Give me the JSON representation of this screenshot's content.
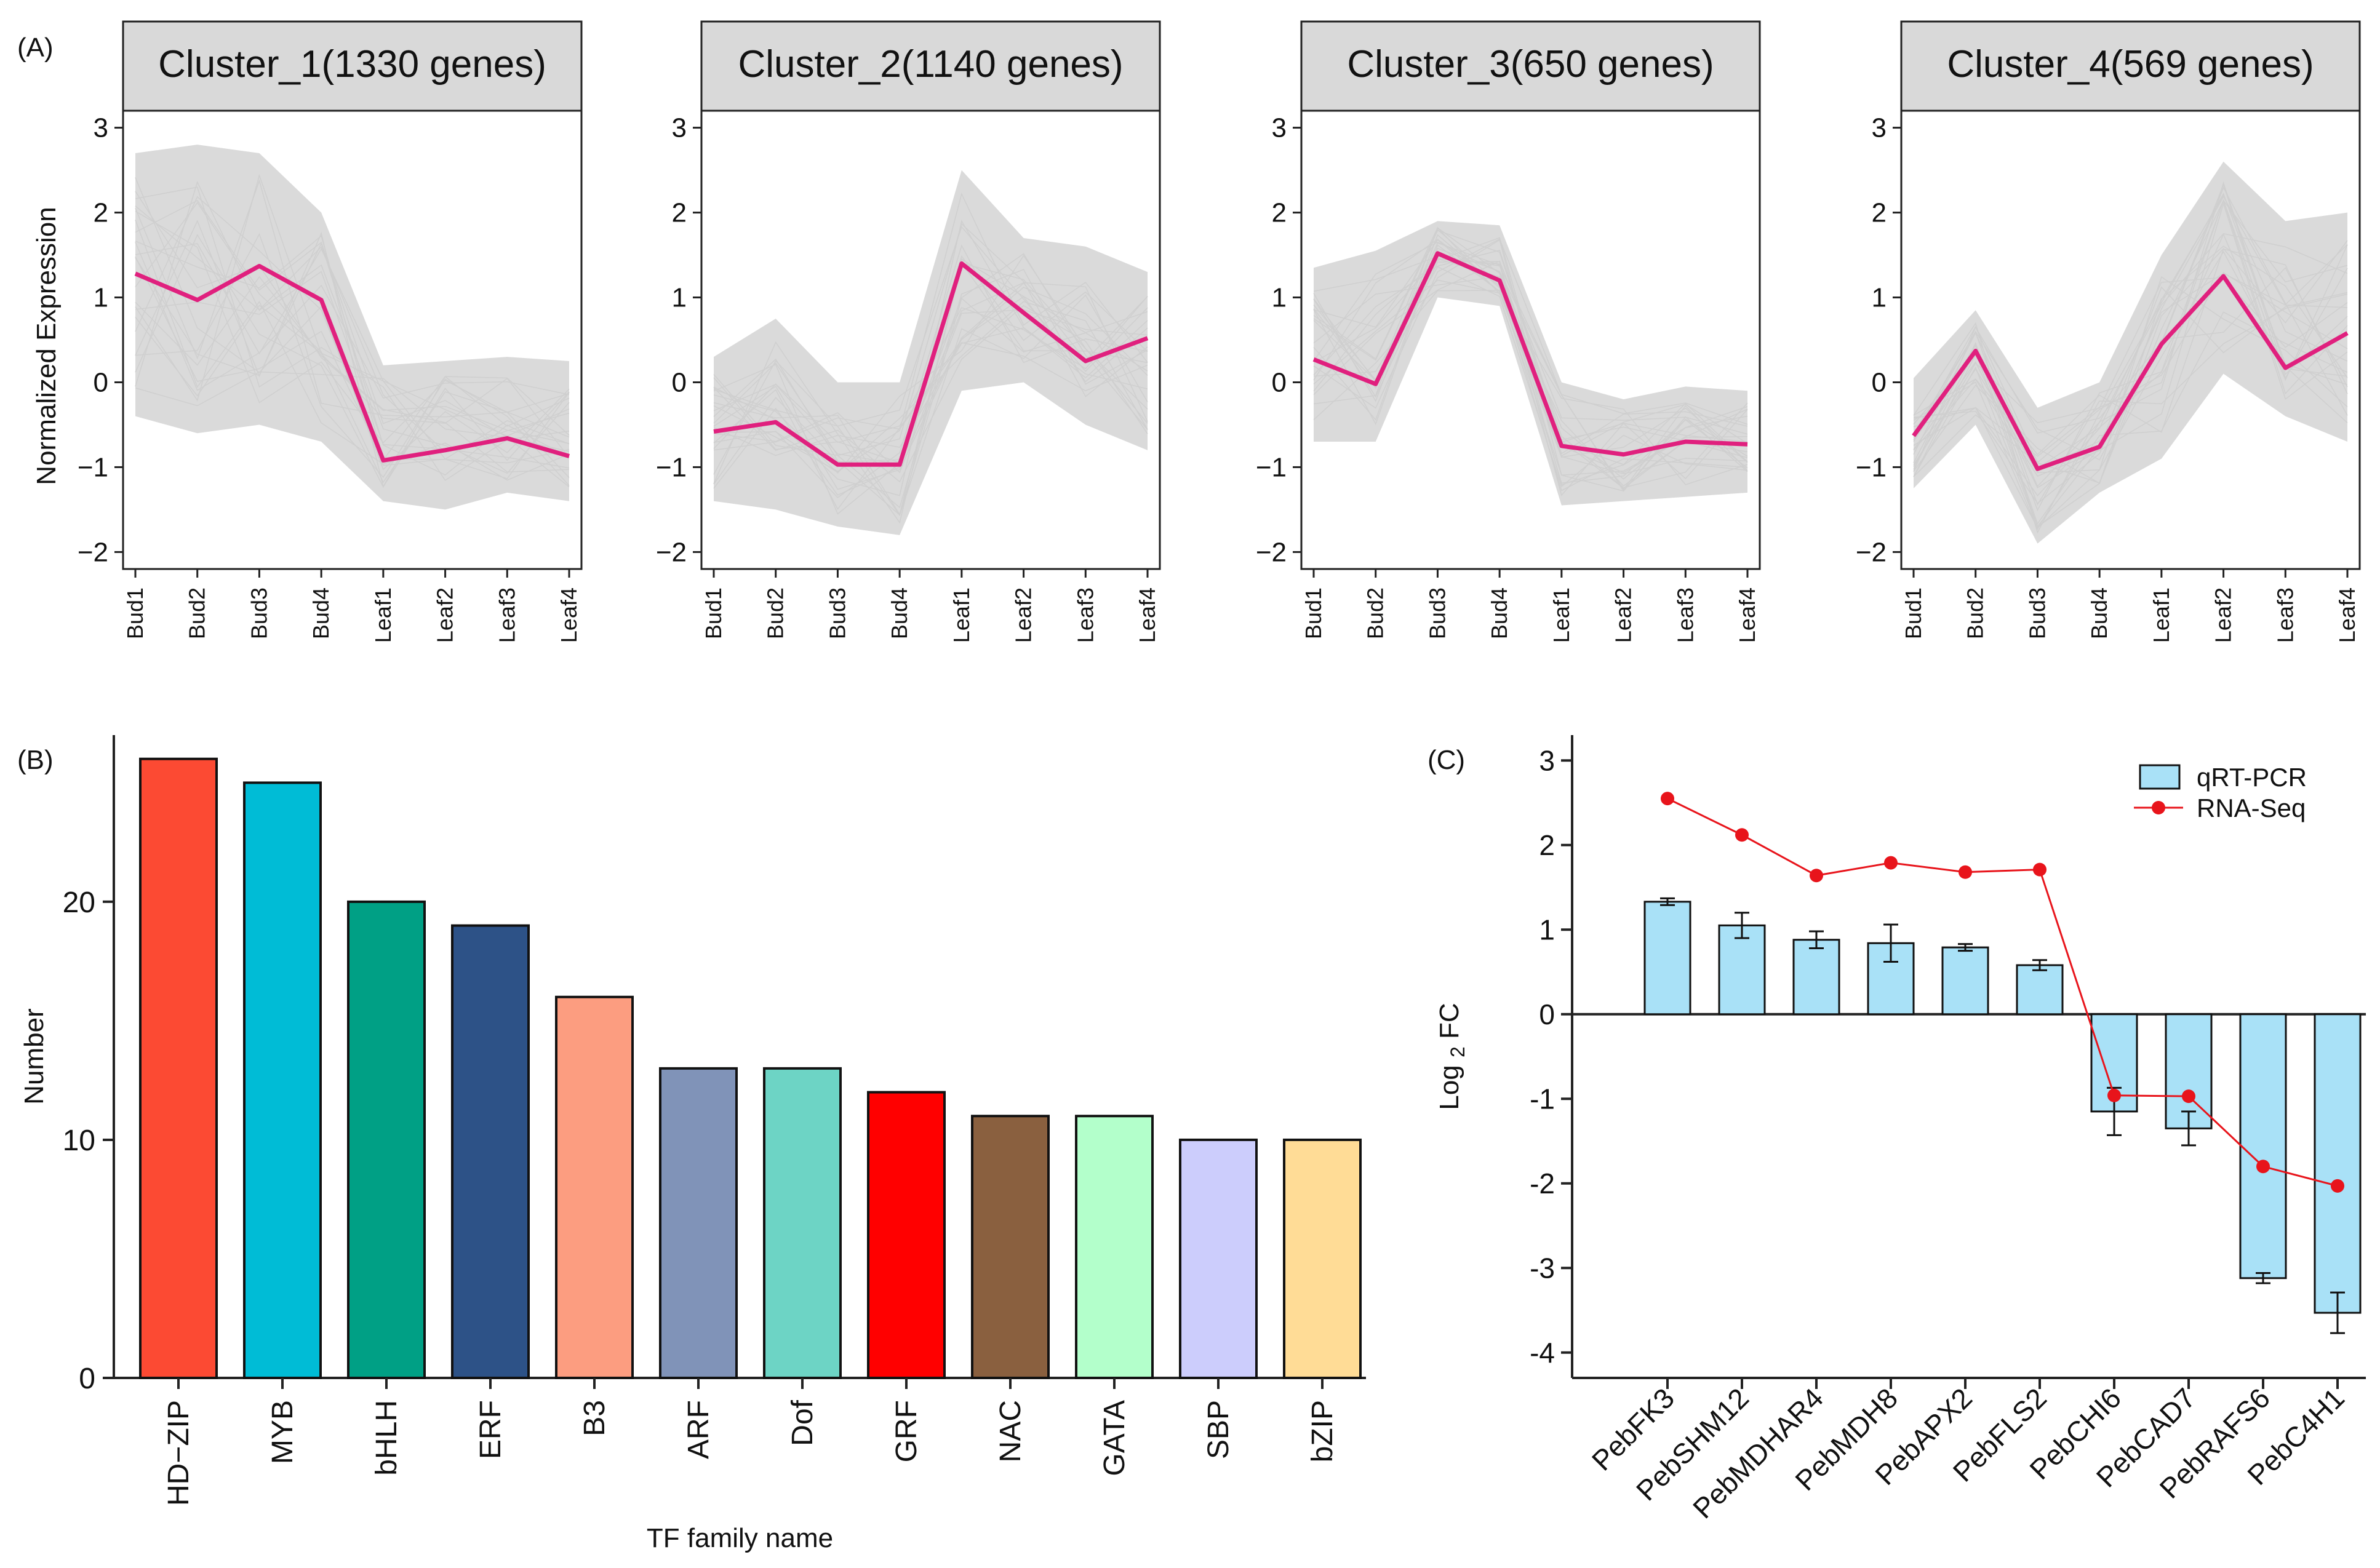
{
  "panel_labels": {
    "a": "(A)",
    "b": "(B)",
    "c": "(C)"
  },
  "colors": {
    "cluster_line": "#e0207e",
    "gene_lines": "#dadada",
    "strip_fill": "#d9d9d9",
    "qrt_fill": "#a9e1f7",
    "rnaseq": "#e8141b"
  },
  "chart_data": [
    {
      "type": "line",
      "title": "Cluster_1(1330 genes)",
      "ylabel": "Normalized Expression",
      "xlabel": "",
      "categories": [
        "Bud1",
        "Bud2",
        "Bud3",
        "Bud4",
        "Leaf1",
        "Leaf2",
        "Leaf3",
        "Leaf4"
      ],
      "ylim": [
        -2.2,
        3.2
      ],
      "yticks": [
        "3",
        "2",
        "1",
        "0",
        "−1",
        "−2"
      ],
      "ytick_values": [
        3,
        2,
        1,
        0,
        -1,
        -2
      ],
      "series": [
        {
          "name": "cluster mean",
          "values": [
            1.28,
            0.97,
            1.37,
            0.97,
            -0.92,
            -0.8,
            -0.66,
            -0.87
          ]
        }
      ],
      "gene_band": {
        "upper": [
          2.7,
          2.8,
          2.7,
          2.0,
          0.2,
          0.25,
          0.3,
          0.25
        ],
        "lower": [
          -0.4,
          -0.6,
          -0.5,
          -0.7,
          -1.4,
          -1.5,
          -1.3,
          -1.4
        ]
      }
    },
    {
      "type": "line",
      "title": "Cluster_2(1140 genes)",
      "xlabel": "",
      "categories": [
        "Bud1",
        "Bud2",
        "Bud3",
        "Bud4",
        "Leaf1",
        "Leaf2",
        "Leaf3",
        "Leaf4"
      ],
      "ylim": [
        -2.2,
        3.2
      ],
      "yticks": [
        "3",
        "2",
        "1",
        "0",
        "−1",
        "−2"
      ],
      "ytick_values": [
        3,
        2,
        1,
        0,
        -1,
        -2
      ],
      "series": [
        {
          "name": "cluster mean",
          "values": [
            -0.58,
            -0.47,
            -0.97,
            -0.97,
            1.4,
            0.82,
            0.25,
            0.52
          ]
        }
      ],
      "gene_band": {
        "upper": [
          0.3,
          0.75,
          0.0,
          0.0,
          2.5,
          1.7,
          1.6,
          1.3
        ],
        "lower": [
          -1.4,
          -1.5,
          -1.7,
          -1.8,
          -0.1,
          0.0,
          -0.5,
          -0.8
        ]
      }
    },
    {
      "type": "line",
      "title": "Cluster_3(650 genes)",
      "xlabel": "",
      "categories": [
        "Bud1",
        "Bud2",
        "Bud3",
        "Bud4",
        "Leaf1",
        "Leaf2",
        "Leaf3",
        "Leaf4"
      ],
      "ylim": [
        -2.2,
        3.2
      ],
      "yticks": [
        "3",
        "2",
        "1",
        "0",
        "−1",
        "−2"
      ],
      "ytick_values": [
        3,
        2,
        1,
        0,
        -1,
        -2
      ],
      "series": [
        {
          "name": "cluster mean",
          "values": [
            0.27,
            -0.02,
            1.52,
            1.2,
            -0.75,
            -0.85,
            -0.7,
            -0.73
          ]
        }
      ],
      "gene_band": {
        "upper": [
          1.35,
          1.55,
          1.9,
          1.85,
          0.0,
          -0.2,
          -0.05,
          -0.1
        ],
        "lower": [
          -0.7,
          -0.7,
          1.0,
          0.9,
          -1.45,
          -1.4,
          -1.35,
          -1.3
        ]
      }
    },
    {
      "type": "line",
      "title": "Cluster_4(569 genes)",
      "xlabel": "",
      "categories": [
        "Bud1",
        "Bud2",
        "Bud3",
        "Bud4",
        "Leaf1",
        "Leaf2",
        "Leaf3",
        "Leaf4"
      ],
      "ylim": [
        -2.2,
        3.2
      ],
      "yticks": [
        "3",
        "2",
        "1",
        "0",
        "−1",
        "−2"
      ],
      "ytick_values": [
        3,
        2,
        1,
        0,
        -1,
        -2
      ],
      "series": [
        {
          "name": "cluster mean",
          "values": [
            -0.63,
            0.37,
            -1.02,
            -0.76,
            0.45,
            1.25,
            0.17,
            0.58
          ]
        }
      ],
      "gene_band": {
        "upper": [
          0.05,
          0.85,
          -0.3,
          0.0,
          1.5,
          2.6,
          1.9,
          2.0
        ],
        "lower": [
          -1.25,
          -0.5,
          -1.9,
          -1.3,
          -0.9,
          0.1,
          -0.4,
          -0.7
        ]
      }
    },
    {
      "type": "bar",
      "title": "",
      "xlabel": "TF family name",
      "ylabel": "Number",
      "categories": [
        "HD−ZIP",
        "MYB",
        "bHLH",
        "ERF",
        "B3",
        "ARF",
        "Dof",
        "GRF",
        "NAC",
        "GATA",
        "SBP",
        "bZIP"
      ],
      "values": [
        26,
        25,
        20,
        19,
        16,
        13,
        13,
        12,
        11,
        11,
        10,
        10
      ],
      "colors": [
        "#fc4a33",
        "#00bcd6",
        "#00a085",
        "#2d5287",
        "#fc9d80",
        "#8093b8",
        "#6dd4c5",
        "#ff0000",
        "#8a603f",
        "#b3ffcb",
        "#cccdfc",
        "#ffdc96"
      ],
      "ylim": [
        0,
        27
      ],
      "yticks": [
        "0",
        "10",
        "20"
      ],
      "ytick_values": [
        0,
        10,
        20
      ]
    },
    {
      "type": "bar",
      "title": "",
      "xlabel": "",
      "ylabel": "Log",
      "ylabel_sub": "2",
      "ylabel_suffix": "FC",
      "categories": [
        "PebFK3",
        "PebSHM12",
        "PebMDHAR4",
        "PebMDH8",
        "PebAPX2",
        "PebFLS2",
        "PebCHI6",
        "PebCAD7",
        "PebRAFS6",
        "PebC4H1"
      ],
      "ylim": [
        -4.3,
        3.3
      ],
      "yticks": [
        "3",
        "2",
        "1",
        "0",
        "-1",
        "-2",
        "-3",
        "-4"
      ],
      "ytick_values": [
        3,
        2,
        1,
        0,
        -1,
        -2,
        -3,
        -4
      ],
      "series": [
        {
          "name": "qRT-PCR",
          "values": [
            1.33,
            1.05,
            0.88,
            0.84,
            0.79,
            0.58,
            -1.15,
            -1.35,
            -3.12,
            -3.53
          ],
          "errors": [
            0.04,
            0.15,
            0.1,
            0.22,
            0.04,
            0.06,
            0.28,
            0.2,
            0.06,
            0.24
          ]
        },
        {
          "name": "RNA-Seq",
          "values": [
            2.55,
            2.12,
            1.64,
            1.79,
            1.68,
            1.71,
            -0.96,
            -0.97,
            -1.8,
            -2.03
          ]
        }
      ],
      "legend": [
        "qRT-PCR",
        "RNA-Seq"
      ]
    }
  ]
}
